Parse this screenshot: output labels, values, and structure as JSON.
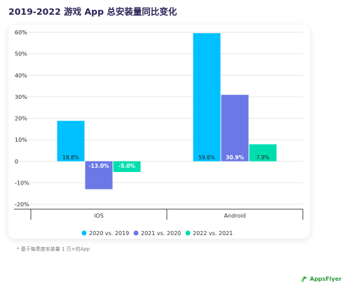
{
  "title": "2019-2022 游戏 App 总安装量同比变化",
  "footnote": "* 基于每季度安装量 1 万+的App",
  "brand": "AppsFlyer",
  "chart_data": {
    "type": "bar",
    "categories": [
      "iOS",
      "Android"
    ],
    "series": [
      {
        "name": "2020 vs. 2019",
        "values": [
          18.8,
          59.6
        ],
        "labels": [
          "18.8%",
          "59.6%"
        ],
        "color": "#00c1ff"
      },
      {
        "name": "2021 vs. 2020",
        "values": [
          -13.0,
          30.9
        ],
        "labels": [
          "-13.0%",
          "30.9%"
        ],
        "color": "#6b78e5"
      },
      {
        "name": "2022 vs. 2021",
        "values": [
          -5.0,
          7.9
        ],
        "labels": [
          "-5.0%",
          "7.9%"
        ],
        "color": "#00deb0"
      }
    ],
    "ylim": [
      -20,
      60
    ],
    "yticks": [
      -20,
      -10,
      0,
      10,
      20,
      30,
      40,
      50,
      60
    ],
    "ytick_labels": [
      "-20%",
      "-10%",
      "0",
      "10%",
      "20%",
      "30%",
      "40%",
      "50%",
      "60%"
    ],
    "grid": true,
    "legend": "bottom-center"
  }
}
